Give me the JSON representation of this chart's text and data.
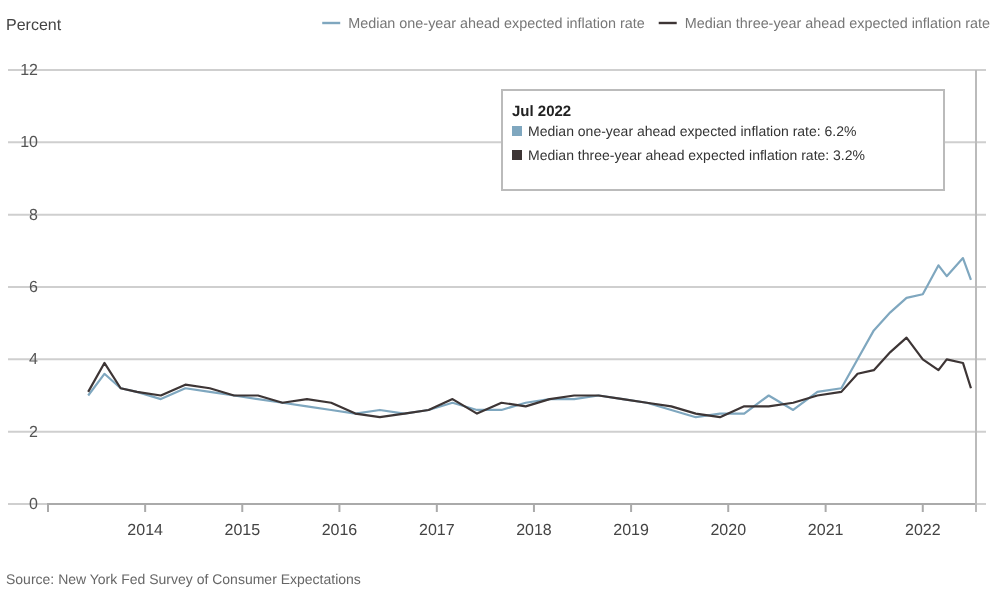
{
  "chart_data": {
    "type": "line",
    "ylabel": "Percent",
    "x": [
      "2013-06",
      "2013-08",
      "2013-10",
      "2013-12",
      "2014-03",
      "2014-06",
      "2014-09",
      "2014-12",
      "2015-03",
      "2015-06",
      "2015-09",
      "2015-12",
      "2016-03",
      "2016-06",
      "2016-09",
      "2016-12",
      "2017-03",
      "2017-06",
      "2017-09",
      "2017-12",
      "2018-03",
      "2018-06",
      "2018-09",
      "2018-12",
      "2019-03",
      "2019-06",
      "2019-09",
      "2019-12",
      "2020-03",
      "2020-06",
      "2020-09",
      "2020-12",
      "2021-03",
      "2021-05",
      "2021-07",
      "2021-09",
      "2021-11",
      "2022-01",
      "2022-03",
      "2022-04",
      "2022-06",
      "2022-07"
    ],
    "series": [
      {
        "name": "Median one-year ahead expected inflation rate",
        "color": "#7fa7bf",
        "values": [
          3.0,
          3.6,
          3.2,
          3.1,
          2.9,
          3.2,
          3.1,
          3.0,
          2.9,
          2.8,
          2.7,
          2.6,
          2.5,
          2.6,
          2.5,
          2.6,
          2.8,
          2.6,
          2.6,
          2.8,
          2.9,
          2.9,
          3.0,
          2.9,
          2.8,
          2.6,
          2.4,
          2.5,
          2.5,
          3.0,
          2.6,
          3.1,
          3.2,
          4.0,
          4.8,
          5.3,
          5.7,
          5.8,
          6.6,
          6.3,
          6.8,
          6.2
        ]
      },
      {
        "name": "Median three-year ahead expected inflation rate",
        "color": "#3d3535",
        "values": [
          3.1,
          3.9,
          3.2,
          3.1,
          3.0,
          3.3,
          3.2,
          3.0,
          3.0,
          2.8,
          2.9,
          2.8,
          2.5,
          2.4,
          2.5,
          2.6,
          2.9,
          2.5,
          2.8,
          2.7,
          2.9,
          3.0,
          3.0,
          2.9,
          2.8,
          2.7,
          2.5,
          2.4,
          2.7,
          2.7,
          2.8,
          3.0,
          3.1,
          3.6,
          3.7,
          4.2,
          4.6,
          4.0,
          3.7,
          4.0,
          3.9,
          3.2
        ]
      }
    ],
    "xlim": [
      "2013-01",
      "2022-07-20"
    ],
    "xticks": [
      "2014",
      "2015",
      "2016",
      "2017",
      "2018",
      "2019",
      "2020",
      "2021",
      "2022"
    ],
    "ylim": [
      0,
      12
    ],
    "yticks": [
      0,
      2,
      4,
      6,
      8,
      10,
      12
    ],
    "grid": "y",
    "legend": "top",
    "line_style": "solid",
    "marker": "none",
    "annotations": [
      "Jul 2022",
      "Median one-year ahead expected inflation rate: 6.2%",
      "Median three-year ahead expected inflation rate: 3.2%",
      "Source: New York Fed Survey of Consumer Expectations"
    ]
  }
}
